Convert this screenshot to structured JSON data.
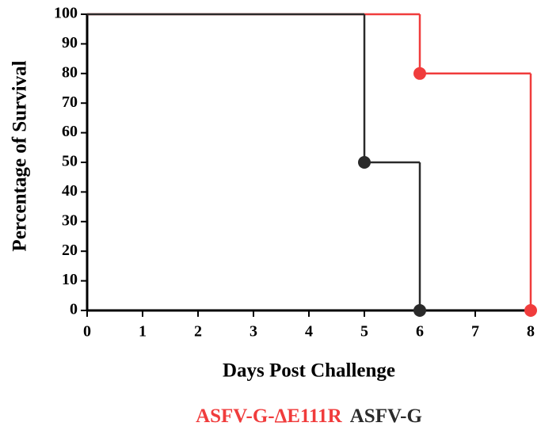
{
  "chart_data": {
    "type": "step",
    "x_label": "Days Post Challenge",
    "y_label": "Percentage of Survival",
    "xlim": [
      0,
      8
    ],
    "xticks": [
      0,
      1,
      2,
      3,
      4,
      5,
      6,
      7,
      8
    ],
    "ylim": [
      0,
      100
    ],
    "yticks": [
      0,
      10,
      20,
      30,
      40,
      50,
      60,
      70,
      80,
      90,
      100
    ],
    "series": [
      {
        "name": "ASFV-G-ΔE111R",
        "color": "#f03c3c",
        "x": [
          0,
          6,
          8
        ],
        "values": [
          100,
          80,
          0
        ]
      },
      {
        "name": "ASFV-G",
        "color": "#2a2a2a",
        "x": [
          0,
          5,
          6
        ],
        "values": [
          100,
          50,
          0
        ]
      }
    ]
  }
}
